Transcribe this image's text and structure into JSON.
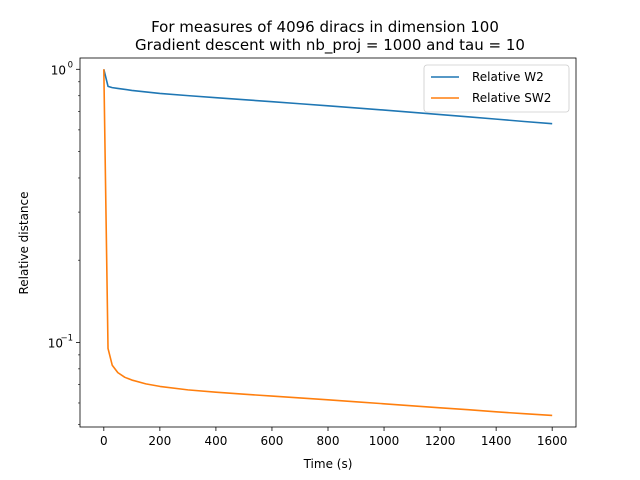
{
  "chart_data": {
    "type": "line",
    "title": "For measures of 4096 diracs in dimension 100",
    "subtitle": "Gradient descent with nb_proj = 1000 and tau = 10",
    "xlabel": "Time (s)",
    "ylabel": "Relative distance",
    "xlim": [
      -85,
      1685
    ],
    "ylim": [
      0.049,
      1.1
    ],
    "yscale": "log",
    "x_ticks": [
      0,
      200,
      400,
      600,
      800,
      1000,
      1200,
      1400,
      1600
    ],
    "x_tick_labels": [
      "0",
      "200",
      "400",
      "600",
      "800",
      "1000",
      "1200",
      "1400",
      "1600"
    ],
    "y_major_ticks": [
      0.1,
      1
    ],
    "y_major_tick_labels": [
      "10",
      "10"
    ],
    "y_major_tick_exponents": [
      "−1",
      "0"
    ],
    "y_minor_ticks": [
      0.05,
      0.06,
      0.07,
      0.08,
      0.09,
      0.2,
      0.3,
      0.4,
      0.5,
      0.6,
      0.7,
      0.8,
      0.9
    ],
    "grid": false,
    "legend_position": "top-right",
    "series": [
      {
        "name": "Relative W2",
        "color": "#1f77b4",
        "x": [
          0,
          15,
          30,
          50,
          100,
          150,
          200,
          300,
          400,
          500,
          600,
          700,
          800,
          900,
          1000,
          1100,
          1200,
          1300,
          1400,
          1500,
          1600
        ],
        "values": [
          1.0,
          0.866,
          0.857,
          0.851,
          0.837,
          0.826,
          0.816,
          0.801,
          0.787,
          0.774,
          0.761,
          0.748,
          0.735,
          0.722,
          0.709,
          0.696,
          0.683,
          0.67,
          0.657,
          0.644,
          0.632
        ]
      },
      {
        "name": "Relative SW2",
        "color": "#ff7f0e",
        "x": [
          0,
          15,
          30,
          50,
          75,
          100,
          150,
          200,
          300,
          400,
          500,
          600,
          700,
          800,
          900,
          1000,
          1100,
          1200,
          1300,
          1400,
          1500,
          1600
        ],
        "values": [
          1.0,
          0.095,
          0.0825,
          0.0775,
          0.0745,
          0.0728,
          0.0705,
          0.069,
          0.067,
          0.0657,
          0.0646,
          0.0636,
          0.0626,
          0.0616,
          0.0606,
          0.0596,
          0.0586,
          0.0576,
          0.0567,
          0.0557,
          0.0548,
          0.054
        ]
      }
    ]
  }
}
